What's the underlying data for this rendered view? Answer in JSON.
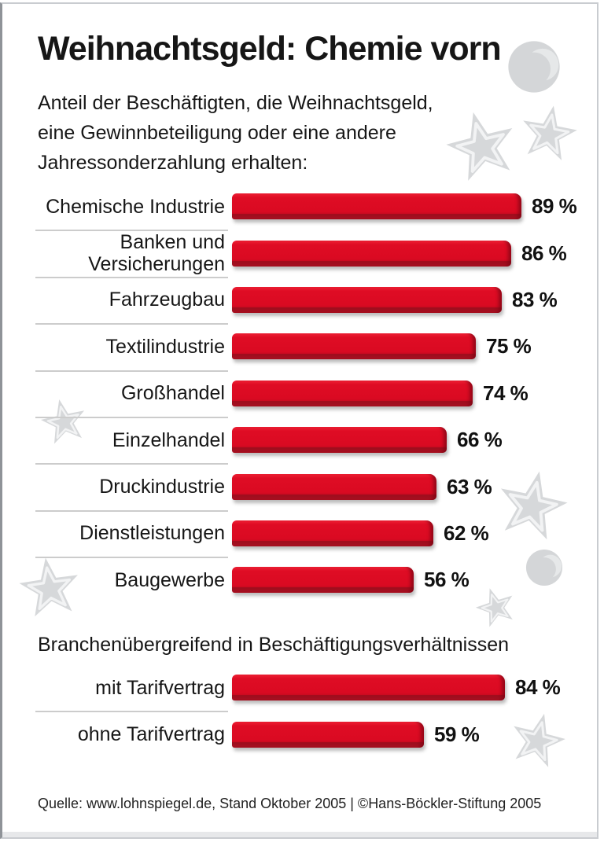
{
  "header": {
    "title": "Weihnachtsgeld: Chemie vorn",
    "subtitle": "Anteil der Beschäftigten, die Weihnachtsgeld,\neine Gewinnbeteiligung oder eine andere\nJahressonderzahlung erhalten:"
  },
  "footer": {
    "source": "Quelle: www.lohnspiegel.de, Stand Oktober 2005 | ©Hans-Böckler-Stiftung 2005"
  },
  "chart_data": {
    "type": "bar",
    "orientation": "horizontal",
    "unit": "%",
    "title": "Weihnachtsgeld: Chemie vorn",
    "xlim": [
      0,
      100
    ],
    "bar_color": "#dc0a22",
    "bar_bevel_color": "#9c0d1d",
    "grid": false,
    "legend": false,
    "sections": [
      {
        "id": "industries",
        "heading": "",
        "rows": [
          {
            "label": "Chemische Industrie",
            "value": 89,
            "value_label": "89 %"
          },
          {
            "label": "Banken und Versicherungen",
            "value": 86,
            "value_label": "86 %"
          },
          {
            "label": "Fahrzeugbau",
            "value": 83,
            "value_label": "83 %"
          },
          {
            "label": "Textilindustrie",
            "value": 75,
            "value_label": "75 %"
          },
          {
            "label": "Großhandel",
            "value": 74,
            "value_label": "74 %"
          },
          {
            "label": "Einzelhandel",
            "value": 66,
            "value_label": "66 %"
          },
          {
            "label": "Druckindustrie",
            "value": 63,
            "value_label": "63 %"
          },
          {
            "label": "Dienstleistungen",
            "value": 62,
            "value_label": "62 %"
          },
          {
            "label": "Baugewerbe",
            "value": 56,
            "value_label": "56 %"
          }
        ]
      },
      {
        "id": "cross",
        "heading": "Branchenübergreifend in Beschäftigungsverhältnissen",
        "rows": [
          {
            "label": "mit Tarifvertrag",
            "value": 84,
            "value_label": "84 %"
          },
          {
            "label": "ohne Tarifvertrag",
            "value": 59,
            "value_label": "59 %"
          }
        ]
      }
    ]
  },
  "decorations": {
    "star_color": "#d6d8da",
    "star_inner_line_color": "#f2f3f4",
    "moon_color": "#d4d6d8",
    "moon_crescent_color": "#e6e8e9"
  }
}
